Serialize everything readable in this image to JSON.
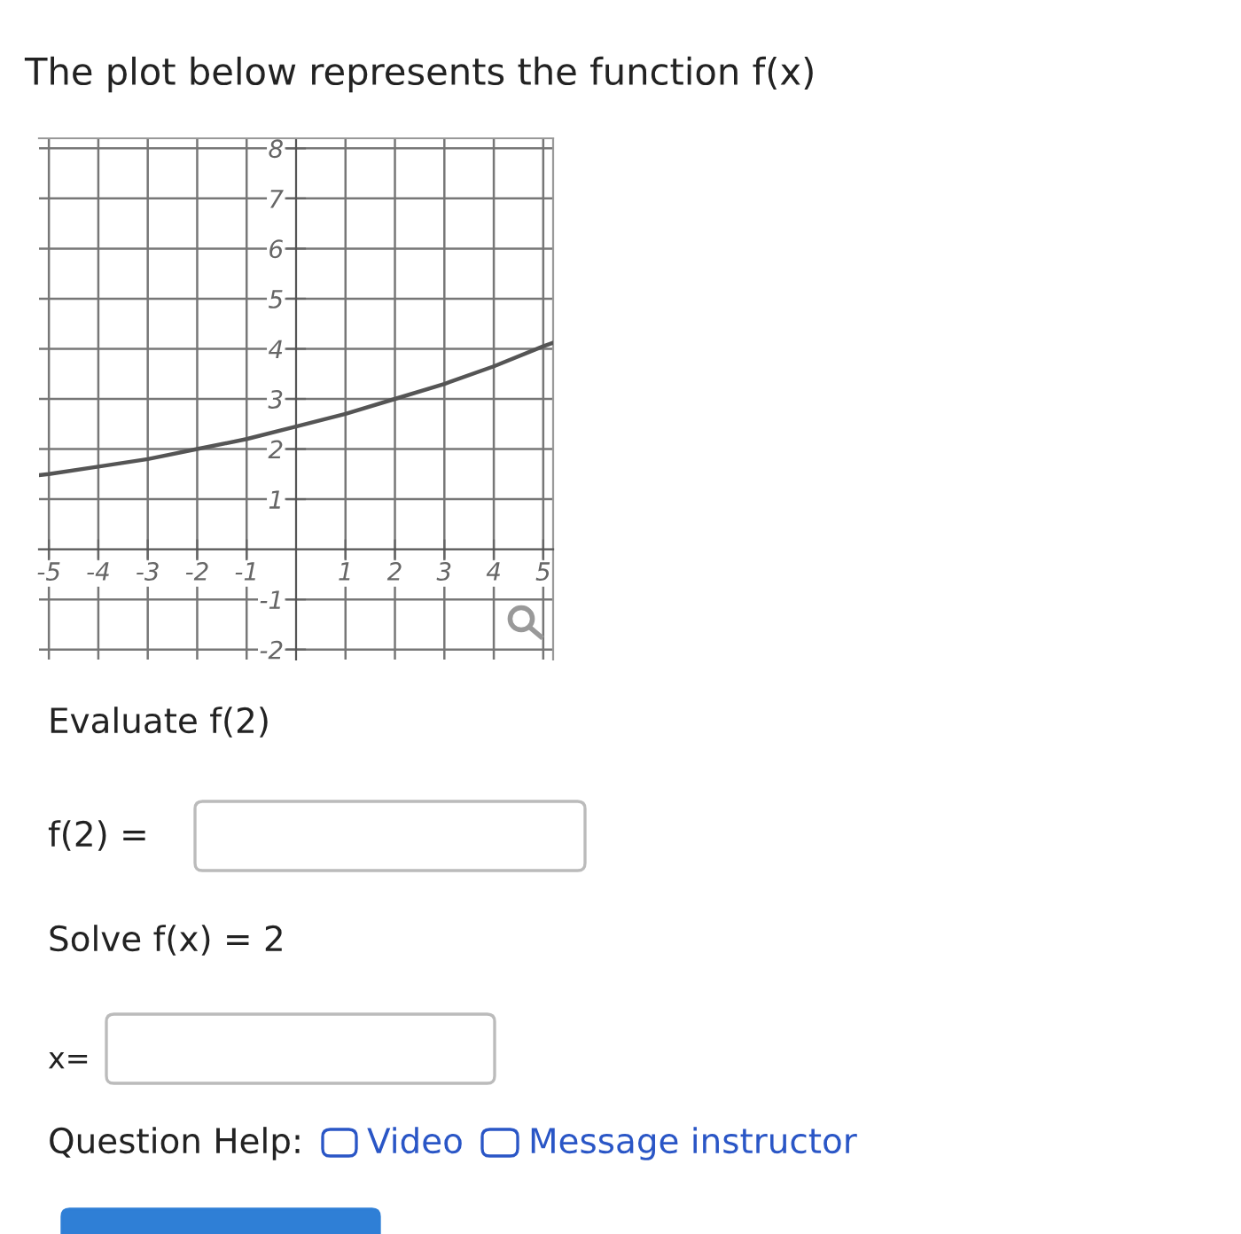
{
  "chart_data": {
    "type": "line",
    "title": "The plot below represents the function f(x)",
    "x": [
      -5.2,
      -5,
      -4,
      -3,
      -2,
      -1,
      0,
      1,
      2,
      3,
      4,
      5,
      5.2
    ],
    "series": [
      {
        "color": "#555555",
        "values": [
          1.48,
          1.5,
          1.65,
          1.8,
          2.0,
          2.2,
          2.45,
          2.7,
          3.0,
          3.3,
          3.65,
          4.05,
          4.12
        ]
      }
    ],
    "xlim": [
      -5.2,
      5.2
    ],
    "ylim": [
      -2.2,
      8.2
    ],
    "xticks": [
      -5,
      -4,
      -3,
      -2,
      -1,
      1,
      2,
      3,
      4,
      5
    ],
    "yticks": [
      -2,
      -1,
      1,
      2,
      3,
      4,
      5,
      6,
      7,
      8
    ],
    "grid": true,
    "marker": "none",
    "line_style": "solid",
    "annotations": [
      "Evaluate f(2)",
      "f(2) =",
      "Solve f(x) = 2",
      "x=",
      "Question Help:",
      "Video",
      "Message instructor"
    ]
  }
}
